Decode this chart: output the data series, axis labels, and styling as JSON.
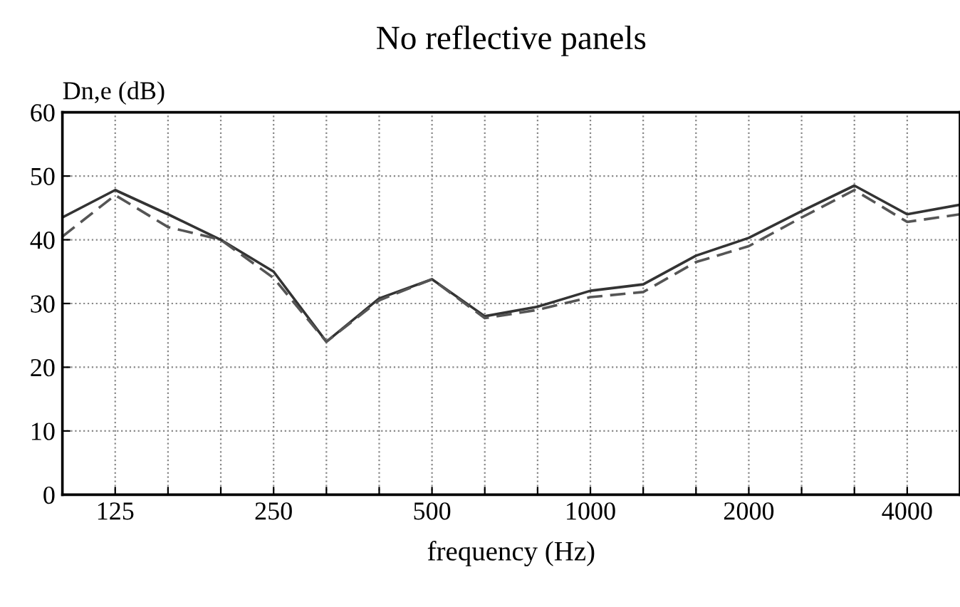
{
  "chart_data": {
    "type": "line",
    "title": "No reflective panels",
    "xlabel": "frequency (Hz)",
    "ylabel": "Dn,e (dB)",
    "categories": [
      null,
      "125",
      null,
      null,
      "250",
      null,
      null,
      "500",
      null,
      null,
      "1000",
      null,
      null,
      "2000",
      null,
      null,
      "4000",
      null
    ],
    "series": [
      {
        "color": "#333333",
        "line_style": "solid",
        "values": [
          43.5,
          47.8,
          44,
          40,
          35,
          24,
          30.8,
          33.8,
          28,
          29.5,
          32,
          33,
          37.5,
          40.3,
          44.5,
          48.5,
          44,
          45.5
        ]
      },
      {
        "color": "#555555",
        "line_style": "dashed",
        "values": [
          40.5,
          47,
          42,
          40,
          34,
          24,
          30.5,
          33.8,
          27.7,
          29,
          31,
          31.8,
          36.5,
          39,
          43.5,
          47.8,
          42.8,
          44
        ]
      }
    ],
    "ylim": [
      0,
      60
    ],
    "yticks": [
      0,
      10,
      20,
      30,
      40,
      50,
      60
    ],
    "grid": true,
    "marker": "none"
  }
}
